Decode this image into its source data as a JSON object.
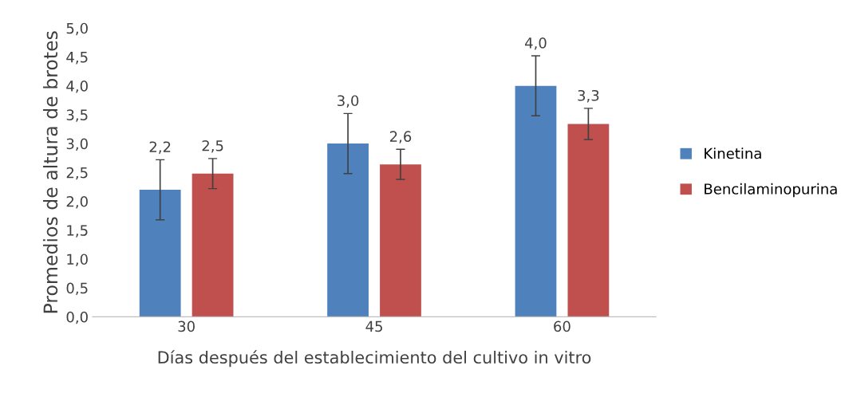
{
  "chart_data": {
    "type": "bar",
    "xlabel": "Días después del establecimiento del cultivo in vitro",
    "ylabel": "Promedios de altura de brotes",
    "categories": [
      "30",
      "45",
      "60"
    ],
    "series": [
      {
        "name": "Kinetina",
        "color": "#4f81bd",
        "values": [
          2.2,
          3.0,
          4.0
        ],
        "errors": [
          0.52,
          0.52,
          0.52
        ],
        "value_labels": [
          "2,2",
          "3,0",
          "4,0"
        ]
      },
      {
        "name": "Bencilaminopurina",
        "color": "#c0504d",
        "values": [
          2.48,
          2.64,
          3.34
        ],
        "errors": [
          0.26,
          0.26,
          0.27
        ],
        "value_labels": [
          "2,5",
          "2,6",
          "3,3"
        ]
      }
    ],
    "ylim": [
      0,
      5
    ],
    "yticks": [
      {
        "value": 0,
        "label": "0,0"
      },
      {
        "value": 0.5,
        "label": "0,5"
      },
      {
        "value": 1,
        "label": "1,0"
      },
      {
        "value": 1.5,
        "label": "1,5"
      },
      {
        "value": 2,
        "label": "2,0"
      },
      {
        "value": 2.5,
        "label": "2,5"
      },
      {
        "value": 3,
        "label": "3,0"
      },
      {
        "value": 3.5,
        "label": "3,5"
      },
      {
        "value": 4,
        "label": "4,0"
      },
      {
        "value": 4.5,
        "label": "4,5"
      },
      {
        "value": 5,
        "label": "5,0"
      }
    ],
    "grid": false,
    "legend": "right"
  }
}
